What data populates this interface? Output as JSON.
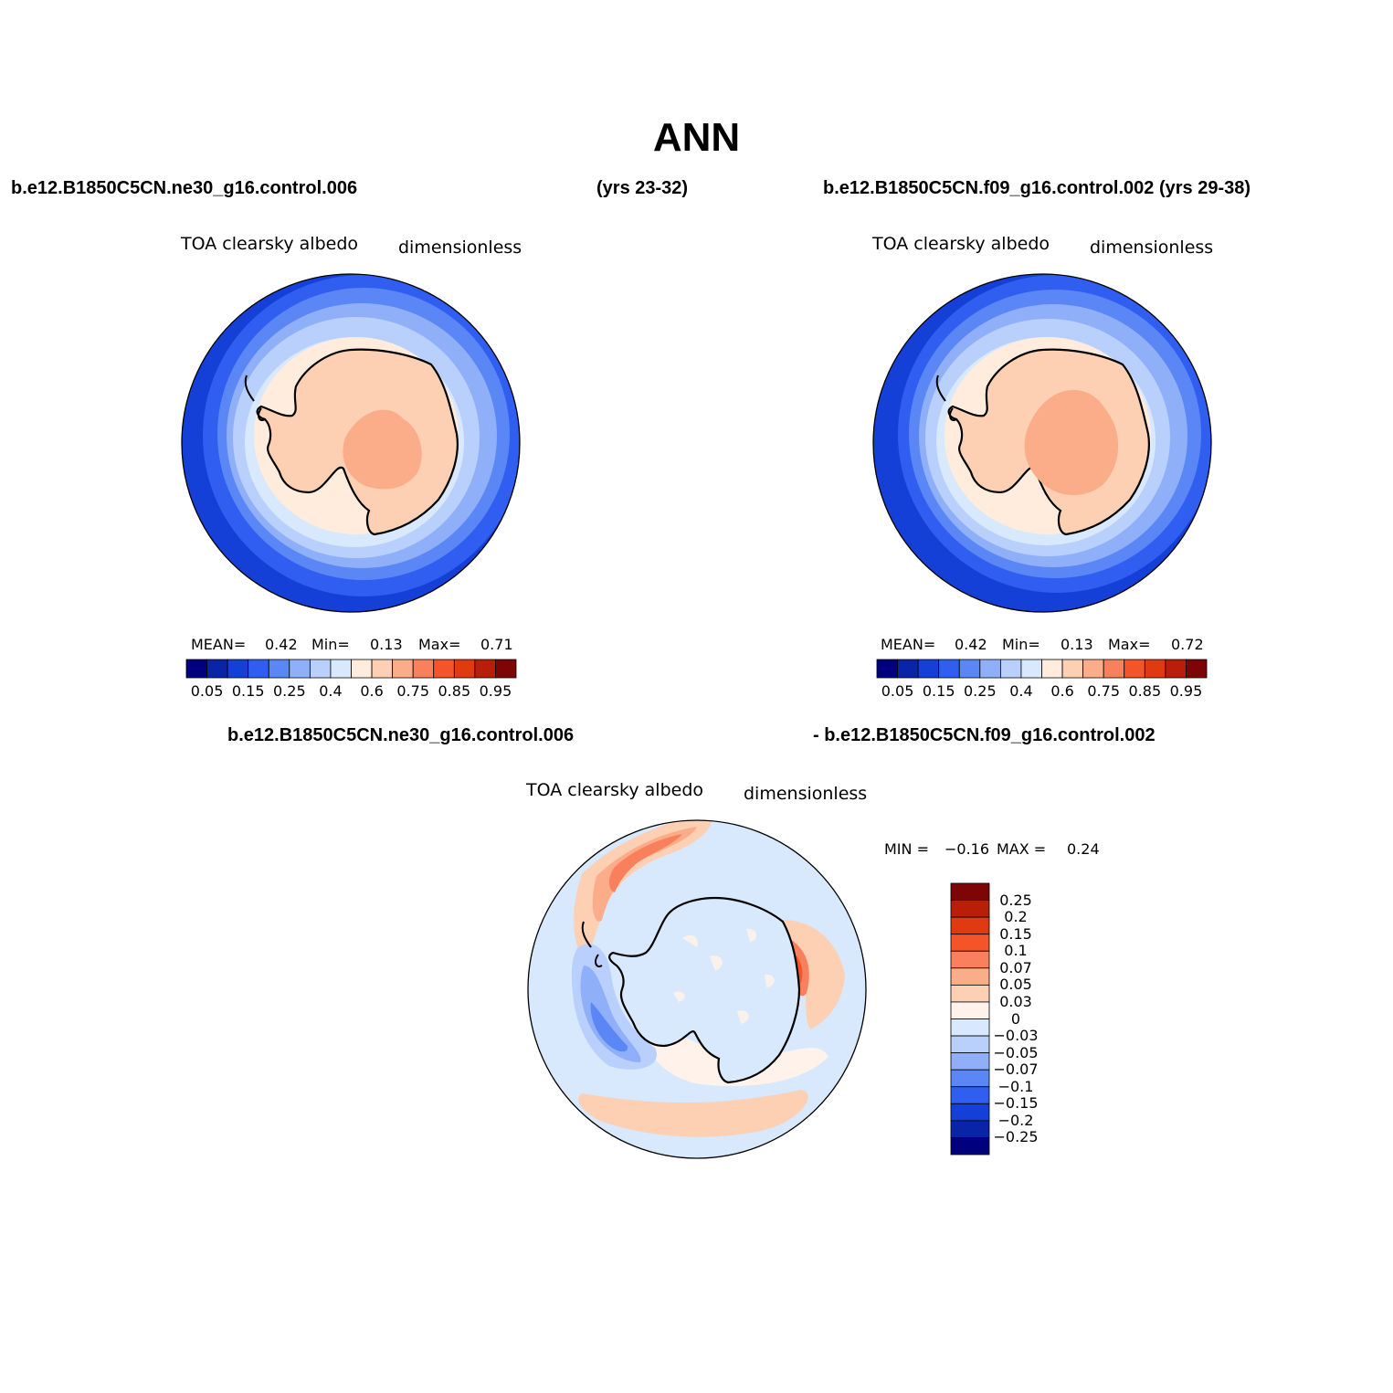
{
  "title": "ANN",
  "case1": "b.e12.B1850C5CN.ne30_g16.control.006",
  "case1_years": "(yrs 23-32)",
  "case2": "b.e12.B1850C5CN.f09_g16.control.002 (yrs 29-38)",
  "panel1": {
    "variable": "TOA clearsky albedo",
    "units": "dimensionless",
    "mean_label": "MEAN=",
    "mean": "0.42",
    "min_label": "Min=",
    "min": "0.13",
    "max_label": "Max=",
    "max": "0.71"
  },
  "panel2": {
    "variable": "TOA clearsky albedo",
    "units": "dimensionless",
    "mean_label": "MEAN=",
    "mean": "0.42",
    "min_label": "Min=",
    "min": "0.13",
    "max_label": "Max=",
    "max": "0.72"
  },
  "diff_title_left": "b.e12.B1850C5CN.ne30_g16.control.006",
  "diff_title_right": "- b.e12.B1850C5CN.f09_g16.control.002",
  "panel3": {
    "variable": "TOA clearsky albedo",
    "units": "dimensionless",
    "min_label": "MIN =",
    "min": "−0.16",
    "max_label": "MAX =",
    "max": "0.24"
  },
  "colorbar_abs": {
    "colors": [
      "#00007f",
      "#0a24a8",
      "#1440d8",
      "#2f5ef0",
      "#5a86f6",
      "#8fb0f8",
      "#b8d0fb",
      "#d8e8fd",
      "#ffecdc",
      "#fdd0b4",
      "#fbac88",
      "#f8805c",
      "#f45428",
      "#e03a10",
      "#b81e0a",
      "#7e0505"
    ],
    "labels": [
      "0.05",
      "0.15",
      "0.25",
      "0.4",
      "0.6",
      "0.75",
      "0.85",
      "0.95"
    ]
  },
  "colorbar_diff": {
    "colors": [
      "#7e0505",
      "#b81e0a",
      "#e03a10",
      "#f45428",
      "#f8805c",
      "#fbac88",
      "#fdd0b4",
      "#fff2ea",
      "#d8e8fd",
      "#b8d0fb",
      "#8fb0f8",
      "#5a86f6",
      "#2f5ef0",
      "#1440d8",
      "#0a24a8",
      "#00007f"
    ],
    "labels": [
      "0.25",
      "0.2",
      "0.15",
      "0.1",
      "0.07",
      "0.05",
      "0.03",
      "0",
      "−0.03",
      "−0.05",
      "−0.07",
      "−0.1",
      "−0.15",
      "−0.2",
      "−0.25"
    ]
  },
  "map_colors": {
    "ocean_far": "#1440d8",
    "ocean_mid": "#2f5ef0",
    "ocean_band1": "#5a86f6",
    "ocean_band2": "#8fb0f8",
    "ocean_band3": "#b8d0fb",
    "ocean_band4": "#d8e8fd",
    "ice_edge": "#ffecdc",
    "land": "#fdd0b4",
    "plateau": "#fbac88",
    "diff_bg": "#d8e8fd",
    "diff_pos1": "#fff2ea",
    "diff_pos2": "#fdd0b4",
    "diff_pos3": "#fbac88",
    "diff_pos4": "#f8805c",
    "diff_pos5": "#f45428",
    "diff_neg1": "#b8d0fb",
    "diff_neg2": "#8fb0f8",
    "diff_neg3": "#5a86f6"
  }
}
